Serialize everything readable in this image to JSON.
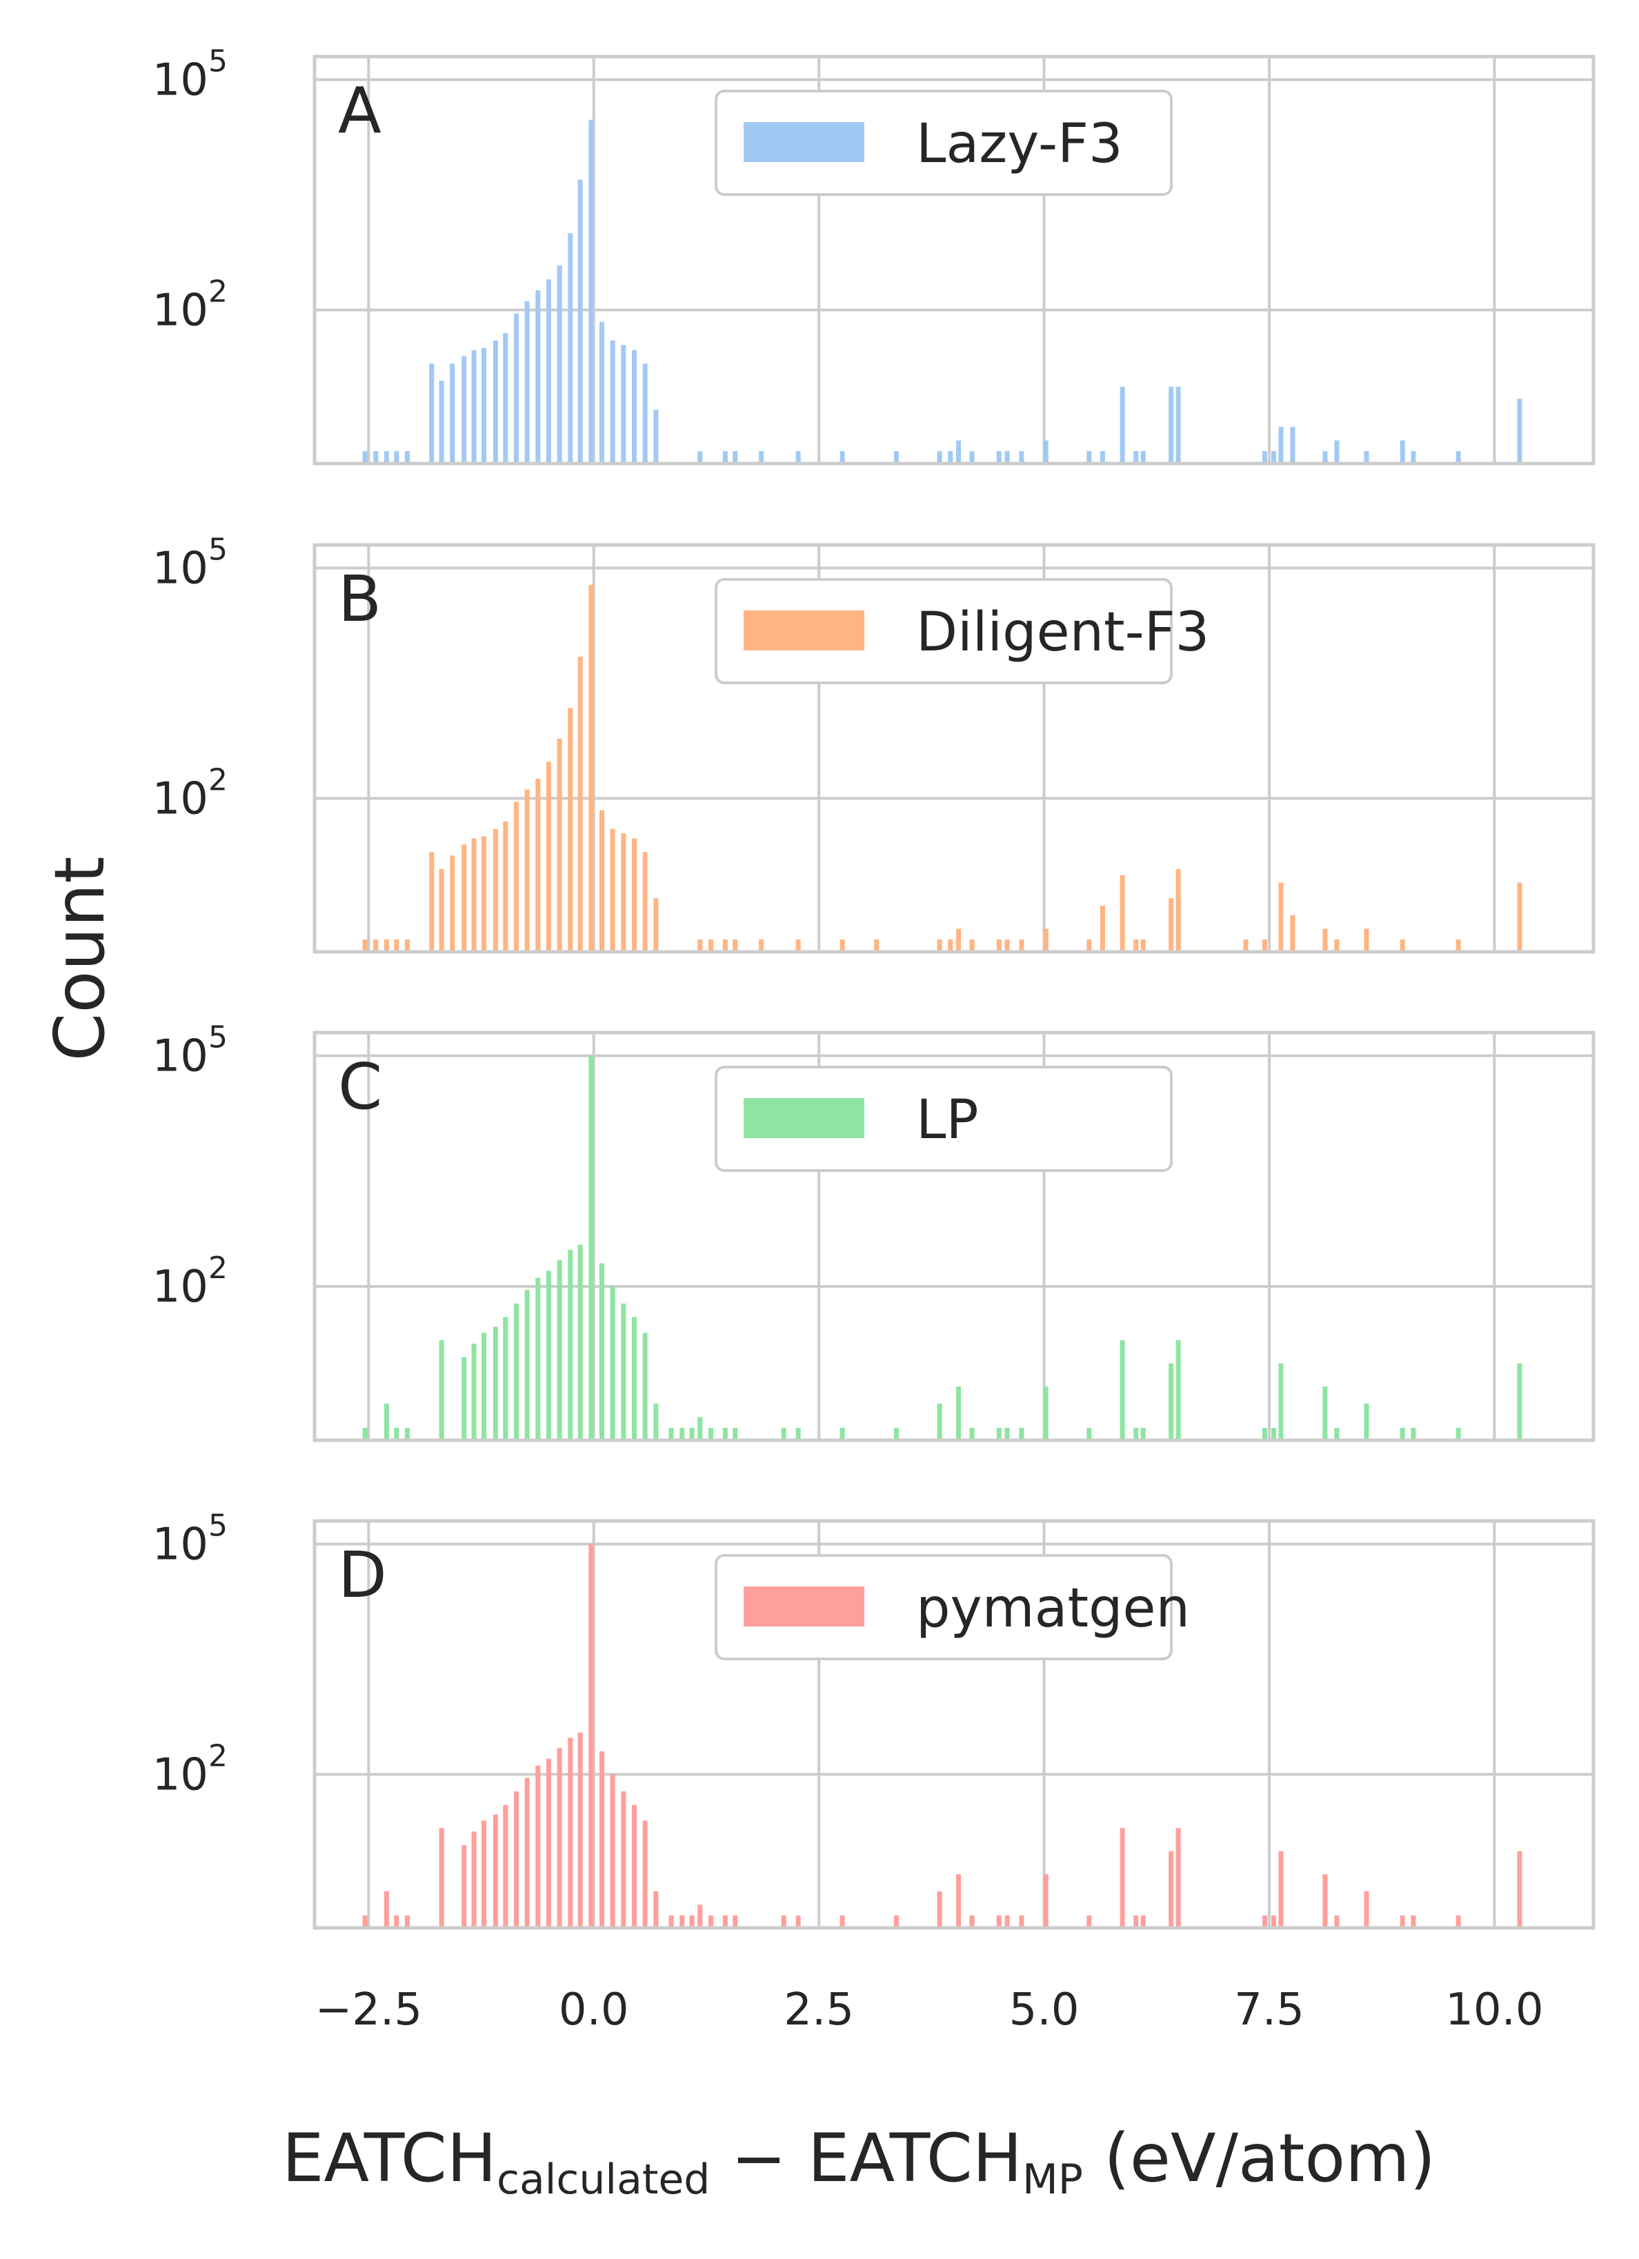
{
  "figure": {
    "ylabel": "Count",
    "xlabel": {
      "main1": "EATCH",
      "sub1": "calculated",
      "minus": " − ",
      "main2": "EATCH",
      "sub2": "MP",
      "unit": " (eV/atom)"
    }
  },
  "chart_data": [
    {
      "type": "bar",
      "panel_label": "A",
      "legend": "Lazy-F3",
      "color": "#a1c9f4",
      "yscale": "log",
      "ylim": [
        1,
        200000
      ],
      "yticks": [
        {
          "base": "10",
          "exp": "2",
          "value": 100
        },
        {
          "base": "10",
          "exp": "5",
          "value": 100000
        }
      ],
      "xlim": [
        -3.1,
        11.1
      ],
      "xticks": [
        "−2.5",
        "0.0",
        "2.5",
        "5.0",
        "7.5",
        "10.0"
      ],
      "xtick_values": [
        -2.5,
        0.0,
        2.5,
        5.0,
        7.5,
        10.0
      ],
      "grid": true,
      "legend_position": "upper center",
      "bins": {
        "x": [
          -2.54,
          -2.42,
          -2.3,
          -2.19,
          -2.07,
          -1.8,
          -1.69,
          -1.57,
          -1.44,
          -1.33,
          -1.22,
          -1.09,
          -0.98,
          -0.86,
          -0.74,
          -0.62,
          -0.5,
          -0.38,
          -0.26,
          -0.15,
          -0.03,
          0.09,
          0.21,
          0.33,
          0.45,
          0.57,
          0.69,
          1.18,
          1.46,
          1.57,
          1.86,
          2.27,
          2.76,
          3.36,
          3.84,
          3.96,
          4.05,
          4.2,
          4.5,
          4.59,
          4.75,
          5.02,
          5.5,
          5.65,
          5.87,
          6.02,
          6.1,
          6.41,
          6.49,
          7.45,
          7.55,
          7.63,
          7.76,
          8.12,
          8.25,
          8.58,
          8.98,
          9.1,
          9.6,
          10.28
        ],
        "values": [
          1,
          1,
          1,
          1,
          1,
          20,
          12,
          20,
          25,
          30,
          32,
          40,
          50,
          90,
          130,
          180,
          250,
          380,
          1000,
          5000,
          30000,
          70,
          40,
          35,
          30,
          20,
          5,
          1,
          1,
          1,
          1,
          1,
          1,
          1,
          1,
          1,
          2,
          1,
          1,
          1,
          1,
          2,
          1,
          1,
          10,
          1,
          1,
          10,
          10,
          1,
          1,
          3,
          3,
          1,
          2,
          1,
          2,
          1,
          1,
          7
        ]
      }
    },
    {
      "type": "bar",
      "panel_label": "B",
      "legend": "Diligent-F3",
      "color": "#ffb482",
      "yscale": "log",
      "ylim": [
        1,
        200000
      ],
      "yticks": [
        {
          "base": "10",
          "exp": "2",
          "value": 100
        },
        {
          "base": "10",
          "exp": "5",
          "value": 100000
        }
      ],
      "xlim": [
        -3.1,
        11.1
      ],
      "xticks": [
        "−2.5",
        "0.0",
        "2.5",
        "5.0",
        "7.5",
        "10.0"
      ],
      "xtick_values": [
        -2.5,
        0.0,
        2.5,
        5.0,
        7.5,
        10.0
      ],
      "grid": true,
      "legend_position": "upper center",
      "bins": {
        "x": [
          -2.54,
          -2.42,
          -2.3,
          -2.19,
          -2.07,
          -1.8,
          -1.69,
          -1.57,
          -1.44,
          -1.33,
          -1.22,
          -1.09,
          -0.98,
          -0.86,
          -0.74,
          -0.62,
          -0.5,
          -0.38,
          -0.26,
          -0.15,
          -0.03,
          0.09,
          0.21,
          0.33,
          0.45,
          0.57,
          0.69,
          1.18,
          1.3,
          1.46,
          1.57,
          1.86,
          2.27,
          2.76,
          3.14,
          3.84,
          3.96,
          4.05,
          4.2,
          4.5,
          4.59,
          4.75,
          5.02,
          5.5,
          5.65,
          5.87,
          6.02,
          6.1,
          6.41,
          6.49,
          7.24,
          7.45,
          7.63,
          7.76,
          8.12,
          8.25,
          8.58,
          8.98,
          9.6,
          10.28
        ],
        "values": [
          1,
          1,
          1,
          1,
          1,
          20,
          12,
          18,
          25,
          30,
          32,
          40,
          50,
          90,
          130,
          180,
          300,
          600,
          1500,
          7000,
          60000,
          70,
          40,
          35,
          30,
          20,
          5,
          1,
          1,
          1,
          1,
          1,
          1,
          1,
          1,
          1,
          1,
          2,
          1,
          1,
          1,
          1,
          2,
          1,
          4,
          10,
          1,
          1,
          5,
          12,
          1,
          1,
          8,
          3,
          2,
          1,
          2,
          1,
          1,
          8
        ]
      }
    },
    {
      "type": "bar",
      "panel_label": "C",
      "legend": "LP",
      "color": "#8de5a1",
      "yscale": "log",
      "ylim": [
        1,
        200000
      ],
      "yticks": [
        {
          "base": "10",
          "exp": "2",
          "value": 100
        },
        {
          "base": "10",
          "exp": "5",
          "value": 100000
        }
      ],
      "xlim": [
        -3.1,
        11.1
      ],
      "xticks": [
        "−2.5",
        "0.0",
        "2.5",
        "5.0",
        "7.5",
        "10.0"
      ],
      "xtick_values": [
        -2.5,
        0.0,
        2.5,
        5.0,
        7.5,
        10.0
      ],
      "grid": true,
      "legend_position": "upper center",
      "bins": {
        "x": [
          -2.54,
          -2.3,
          -2.19,
          -2.07,
          -1.69,
          -1.44,
          -1.33,
          -1.22,
          -1.09,
          -0.98,
          -0.86,
          -0.74,
          -0.62,
          -0.5,
          -0.38,
          -0.26,
          -0.15,
          -0.03,
          0.09,
          0.21,
          0.33,
          0.45,
          0.57,
          0.69,
          0.86,
          0.98,
          1.09,
          1.18,
          1.3,
          1.46,
          1.57,
          2.11,
          2.27,
          2.76,
          3.36,
          3.84,
          4.05,
          4.2,
          4.5,
          4.59,
          4.75,
          5.02,
          5.5,
          5.87,
          6.02,
          6.1,
          6.41,
          6.49,
          7.45,
          7.55,
          7.63,
          8.12,
          8.25,
          8.58,
          8.98,
          9.1,
          9.6,
          10.28
        ],
        "values": [
          1,
          3,
          1,
          1,
          20,
          12,
          18,
          25,
          30,
          40,
          60,
          90,
          130,
          160,
          220,
          300,
          350,
          100000,
          200,
          100,
          60,
          40,
          25,
          3,
          1,
          1,
          1,
          2,
          1,
          1,
          1,
          1,
          1,
          1,
          1,
          3,
          5,
          1,
          1,
          1,
          1,
          5,
          1,
          20,
          1,
          1,
          10,
          20,
          1,
          1,
          10,
          5,
          1,
          3,
          1,
          1,
          1,
          10
        ]
      }
    },
    {
      "type": "bar",
      "panel_label": "D",
      "legend": "pymatgen",
      "color": "#ff9f9b",
      "yscale": "log",
      "ylim": [
        1,
        200000
      ],
      "yticks": [
        {
          "base": "10",
          "exp": "2",
          "value": 100
        },
        {
          "base": "10",
          "exp": "5",
          "value": 100000
        }
      ],
      "xlim": [
        -3.1,
        11.1
      ],
      "xticks": [
        "−2.5",
        "0.0",
        "2.5",
        "5.0",
        "7.5",
        "10.0"
      ],
      "xtick_values": [
        -2.5,
        0.0,
        2.5,
        5.0,
        7.5,
        10.0
      ],
      "grid": true,
      "legend_position": "upper center",
      "bins": {
        "x": [
          -2.54,
          -2.3,
          -2.19,
          -2.07,
          -1.69,
          -1.44,
          -1.33,
          -1.22,
          -1.09,
          -0.98,
          -0.86,
          -0.74,
          -0.62,
          -0.5,
          -0.38,
          -0.26,
          -0.15,
          -0.03,
          0.09,
          0.21,
          0.33,
          0.45,
          0.57,
          0.69,
          0.86,
          0.98,
          1.09,
          1.18,
          1.3,
          1.46,
          1.57,
          2.11,
          2.27,
          2.76,
          3.36,
          3.84,
          4.05,
          4.2,
          4.5,
          4.59,
          4.75,
          5.02,
          5.5,
          5.87,
          6.02,
          6.1,
          6.41,
          6.49,
          7.45,
          7.55,
          7.63,
          8.12,
          8.25,
          8.58,
          8.98,
          9.1,
          9.6,
          10.28
        ],
        "values": [
          1,
          3,
          1,
          1,
          20,
          12,
          18,
          25,
          30,
          40,
          60,
          90,
          130,
          160,
          220,
          300,
          350,
          100000,
          200,
          100,
          60,
          40,
          25,
          3,
          1,
          1,
          1,
          2,
          1,
          1,
          1,
          1,
          1,
          1,
          1,
          3,
          5,
          1,
          1,
          1,
          1,
          5,
          1,
          20,
          1,
          1,
          10,
          20,
          1,
          1,
          10,
          5,
          1,
          3,
          1,
          1,
          1,
          10
        ]
      }
    }
  ]
}
